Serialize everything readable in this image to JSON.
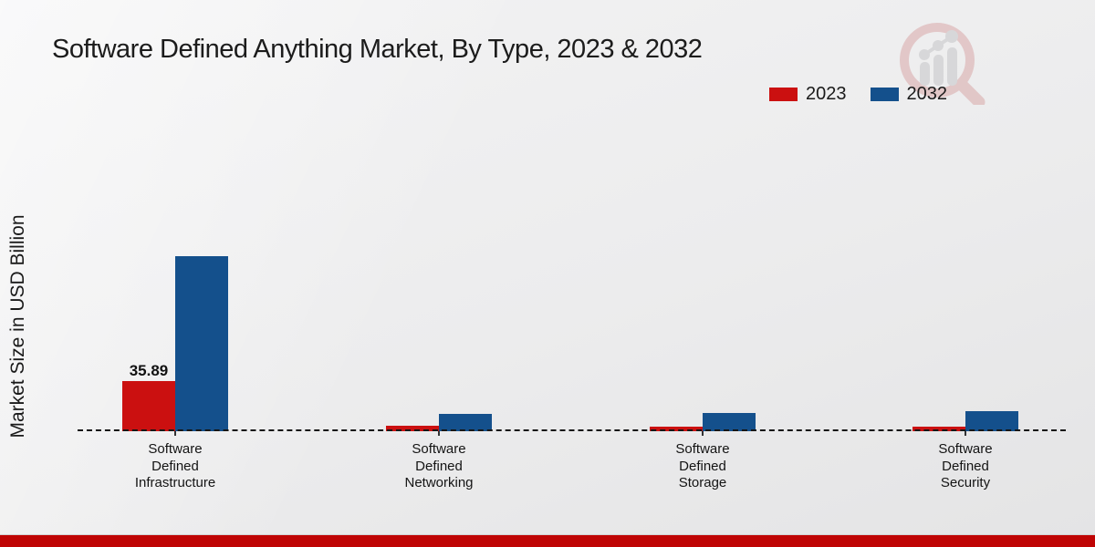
{
  "chart_data": {
    "type": "bar",
    "title": "Software Defined Anything Market, By Type, 2023 & 2032",
    "ylabel": "Market Size in USD Billion",
    "xlabel": "",
    "categories": [
      "Software Defined Infrastructure",
      "Software Defined Networking",
      "Software Defined Storage",
      "Software Defined Security"
    ],
    "series": [
      {
        "name": "2023",
        "color": "#cb1010",
        "values": [
          35.89,
          3.6,
          3.2,
          3.1
        ]
      },
      {
        "name": "2032",
        "color": "#14508c",
        "values": [
          125.0,
          12.7,
          13.0,
          14.3
        ]
      }
    ],
    "annotations": [
      {
        "series": "2023",
        "category": "Software Defined Infrastructure",
        "text": "35.89"
      }
    ],
    "ylim": [
      0,
      130
    ],
    "grid": false,
    "legend_position": "top-right",
    "baseline_style": "dashed"
  },
  "colors": {
    "background": "#ececed",
    "footer_band": "#bf0404",
    "text": "#1a1a1a",
    "watermark_ring": "#d9a9a9",
    "watermark_bars": "#c6c6c8"
  },
  "watermark_icon": "market-research-magnifier-growth-logo"
}
